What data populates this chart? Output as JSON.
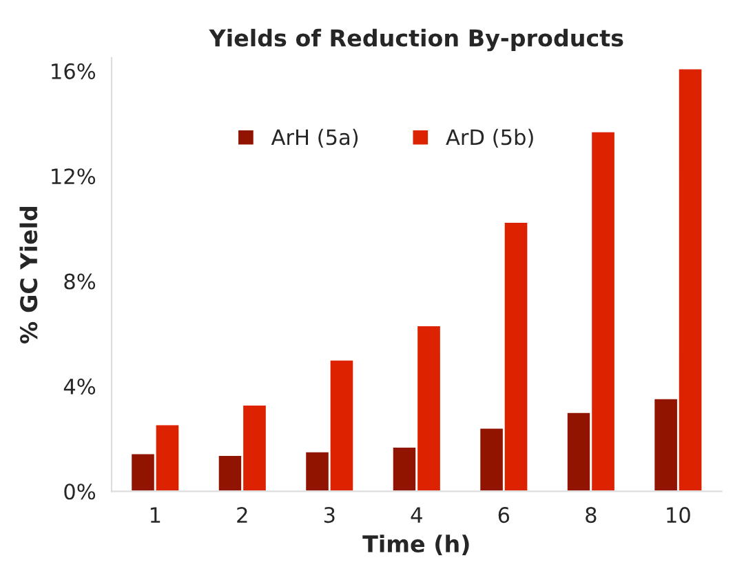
{
  "chart_data": {
    "type": "bar",
    "title": "Yields of Reduction By-products",
    "xlabel": "Time (h)",
    "ylabel": "% GC Yield",
    "categories": [
      "1",
      "2",
      "3",
      "4",
      "6",
      "8",
      "10"
    ],
    "series": [
      {
        "name": "ArH (5a)",
        "color": "#901400",
        "values": [
          1.45,
          1.38,
          1.52,
          1.7,
          2.42,
          3.02,
          3.54
        ]
      },
      {
        "name": "ArD (5b)",
        "color": "#dd2200",
        "values": [
          2.55,
          3.3,
          5.01,
          6.32,
          10.26,
          13.7,
          16.1
        ]
      }
    ],
    "ylim": [
      0,
      16.5
    ],
    "yticks": [
      {
        "value": 0,
        "label": "0%"
      },
      {
        "value": 4,
        "label": "4%"
      },
      {
        "value": 8,
        "label": "8%"
      },
      {
        "value": 12,
        "label": "12%"
      },
      {
        "value": 16,
        "label": "16%"
      }
    ],
    "grid": false,
    "legend": "top"
  }
}
